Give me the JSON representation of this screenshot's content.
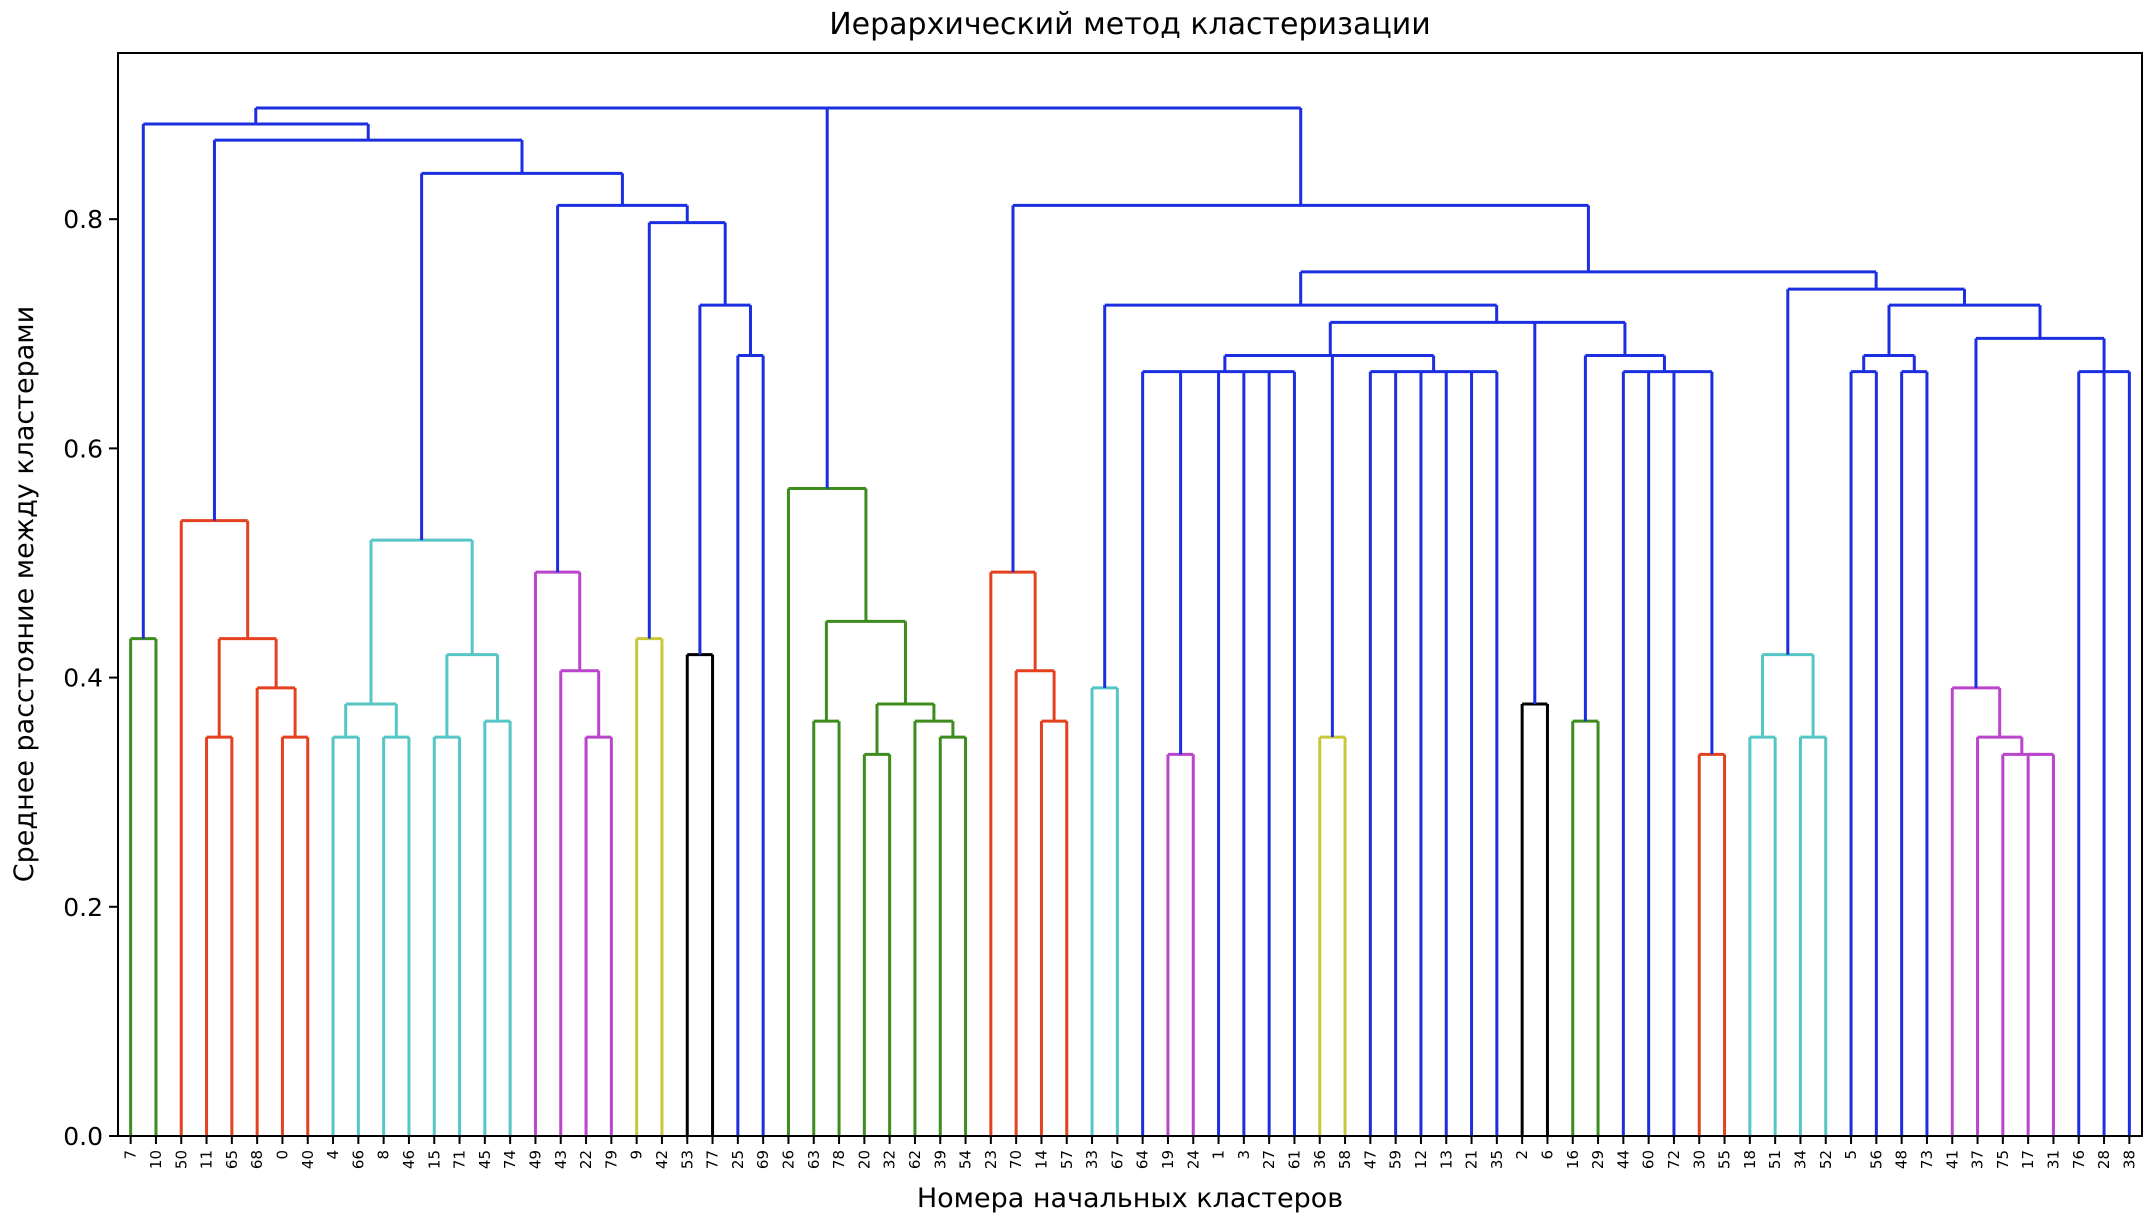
{
  "chart_data": {
    "type": "dendrogram",
    "title": "Иерархический метод кластеризации",
    "xlabel": "Номера начальных кластеров",
    "ylabel": "Среднее расстояние между кластерами",
    "ylim": [
      0,
      0.945
    ],
    "yticks": [
      0.0,
      0.2,
      0.4,
      0.6,
      0.8
    ],
    "ytick_labels": [
      "0.0",
      "0.2",
      "0.4",
      "0.6",
      "0.8"
    ],
    "grid": false,
    "leaves": [
      "7",
      "10",
      "50",
      "11",
      "65",
      "68",
      "0",
      "40",
      "4",
      "66",
      "8",
      "46",
      "15",
      "71",
      "45",
      "74",
      "49",
      "43",
      "22",
      "79",
      "9",
      "42",
      "53",
      "77",
      "25",
      "69",
      "26",
      "63",
      "78",
      "20",
      "32",
      "62",
      "39",
      "54",
      "23",
      "70",
      "14",
      "57",
      "33",
      "67",
      "64",
      "19",
      "24",
      "1",
      "3",
      "27",
      "61",
      "36",
      "58",
      "47",
      "59",
      "12",
      "13",
      "21",
      "35",
      "2",
      "6",
      "16",
      "29",
      "44",
      "60",
      "72",
      "30",
      "55",
      "18",
      "51",
      "34",
      "52",
      "5",
      "56",
      "48",
      "73",
      "41",
      "37",
      "75",
      "17",
      "31",
      "76",
      "28",
      "38"
    ],
    "colors": {
      "green": "#3c8c1e",
      "red": "#e5401f",
      "cyan": "#55c5c5",
      "magenta": "#bb44cc",
      "yellow": "#c8c83a",
      "black": "#000000",
      "blue": "#1c2fe0"
    },
    "tree": {
      "h": 0.897,
      "c": "blue",
      "ch": [
        {
          "h": 0.883,
          "c": "blue",
          "ch": [
            {
              "h": 0.434,
              "c": "green",
              "ch": [
                "7",
                "10"
              ]
            },
            {
              "h": 0.869,
              "c": "blue",
              "ch": [
                {
                  "h": 0.537,
                  "c": "red",
                  "ch": [
                    "50",
                    {
                      "h": 0.434,
                      "c": "red",
                      "ch": [
                        {
                          "h": 0.348,
                          "c": "red",
                          "ch": [
                            "11",
                            "65"
                          ]
                        },
                        {
                          "h": 0.391,
                          "c": "red",
                          "ch": [
                            "68",
                            {
                              "h": 0.348,
                              "c": "red",
                              "ch": [
                                "0",
                                "40"
                              ]
                            }
                          ]
                        }
                      ]
                    }
                  ]
                },
                {
                  "h": 0.84,
                  "c": "blue",
                  "ch": [
                    {
                      "h": 0.52,
                      "c": "cyan",
                      "ch": [
                        {
                          "h": 0.377,
                          "c": "cyan",
                          "ch": [
                            {
                              "h": 0.348,
                              "c": "cyan",
                              "ch": [
                                "4",
                                "66"
                              ]
                            },
                            {
                              "h": 0.348,
                              "c": "cyan",
                              "ch": [
                                "8",
                                "46"
                              ]
                            }
                          ]
                        },
                        {
                          "h": 0.42,
                          "c": "cyan",
                          "ch": [
                            {
                              "h": 0.348,
                              "c": "cyan",
                              "ch": [
                                "15",
                                "71"
                              ]
                            },
                            {
                              "h": 0.362,
                              "c": "cyan",
                              "ch": [
                                "45",
                                "74"
                              ]
                            }
                          ]
                        }
                      ]
                    },
                    {
                      "h": 0.812,
                      "c": "blue",
                      "ch": [
                        {
                          "h": 0.492,
                          "c": "magenta",
                          "ch": [
                            "49",
                            {
                              "h": 0.406,
                              "c": "magenta",
                              "ch": [
                                "43",
                                {
                                  "h": 0.348,
                                  "c": "magenta",
                                  "ch": [
                                    "22",
                                    "79"
                                  ]
                                }
                              ]
                            }
                          ]
                        },
                        {
                          "h": 0.797,
                          "c": "blue",
                          "ch": [
                            {
                              "h": 0.434,
                              "c": "yellow",
                              "ch": [
                                "9",
                                "42"
                              ]
                            },
                            {
                              "h": 0.725,
                              "c": "blue",
                              "ch": [
                                {
                                  "h": 0.42,
                                  "c": "black",
                                  "ch": [
                                    "53",
                                    "77"
                                  ]
                                },
                                {
                                  "h": 0.681,
                                  "c": "blue",
                                  "ch": [
                                    "25",
                                    "69"
                                  ]
                                }
                              ]
                            }
                          ]
                        }
                      ]
                    }
                  ]
                }
              ]
            }
          ]
        },
        {
          "h": 0.897,
          "c": "blue",
          "ch": [
            {
              "h": 0.565,
              "c": "green",
              "ch": [
                "26",
                {
                  "h": 0.449,
                  "c": "green",
                  "ch": [
                    {
                      "h": 0.362,
                      "c": "green",
                      "ch": [
                        "63",
                        "78"
                      ]
                    },
                    {
                      "h": 0.377,
                      "c": "green",
                      "ch": [
                        {
                          "h": 0.333,
                          "c": "green",
                          "ch": [
                            "20",
                            "32"
                          ]
                        },
                        {
                          "h": 0.362,
                          "c": "green",
                          "ch": [
                            "62",
                            {
                              "h": 0.348,
                              "c": "green",
                              "ch": [
                                "39",
                                "54"
                              ]
                            }
                          ]
                        }
                      ]
                    }
                  ]
                }
              ]
            },
            {
              "h": 0.812,
              "c": "blue",
              "ch": [
                {
                  "h": 0.492,
                  "c": "red",
                  "ch": [
                    "23",
                    {
                      "h": 0.406,
                      "c": "red",
                      "ch": [
                        "70",
                        {
                          "h": 0.362,
                          "c": "red",
                          "ch": [
                            "14",
                            "57"
                          ]
                        }
                      ]
                    }
                  ]
                },
                {
                  "h": 0.754,
                  "c": "blue",
                  "ch": [
                    {
                      "h": 0.725,
                      "c": "blue",
                      "ch": [
                        {
                          "h": 0.391,
                          "c": "cyan",
                          "ch": [
                            "33",
                            "67"
                          ]
                        },
                        {
                          "h": 0.71,
                          "c": "blue",
                          "ch": [
                            {
                              "h": 0.681,
                              "c": "blue",
                              "ch": [
                                {
                                  "h": 0.667,
                                  "c": "blue",
                                  "ch": [
                                    "64",
                                    {
                                      "h": 0.333,
                                      "c": "magenta",
                                      "ch": [
                                        "19",
                                        "24"
                                      ]
                                    },
                                    "1",
                                    "3",
                                    "27",
                                    "61"
                                  ]
                                },
                                {
                                  "h": 0.348,
                                  "c": "yellow",
                                  "ch": [
                                    "36",
                                    "58"
                                  ]
                                },
                                {
                                  "h": 0.667,
                                  "c": "blue",
                                  "ch": [
                                    "47",
                                    "59",
                                    "12",
                                    "13",
                                    "21",
                                    "35"
                                  ]
                                }
                              ]
                            },
                            {
                              "h": 0.377,
                              "c": "black",
                              "ch": [
                                "2",
                                "6"
                              ]
                            },
                            {
                              "h": 0.681,
                              "c": "blue",
                              "ch": [
                                {
                                  "h": 0.362,
                                  "c": "green",
                                  "ch": [
                                    "16",
                                    "29"
                                  ]
                                },
                                {
                                  "h": 0.667,
                                  "c": "blue",
                                  "ch": [
                                    "44",
                                    "60",
                                    "72",
                                    {
                                      "h": 0.333,
                                      "c": "red",
                                      "ch": [
                                        "30",
                                        "55"
                                      ]
                                    }
                                  ]
                                }
                              ]
                            }
                          ]
                        }
                      ]
                    },
                    {
                      "h": 0.739,
                      "c": "blue",
                      "ch": [
                        {
                          "h": 0.42,
                          "c": "cyan",
                          "ch": [
                            {
                              "h": 0.348,
                              "c": "cyan",
                              "ch": [
                                "18",
                                "51"
                              ]
                            },
                            {
                              "h": 0.348,
                              "c": "cyan",
                              "ch": [
                                "34",
                                "52"
                              ]
                            }
                          ]
                        },
                        {
                          "h": 0.725,
                          "c": "blue",
                          "ch": [
                            {
                              "h": 0.681,
                              "c": "blue",
                              "ch": [
                                {
                                  "h": 0.667,
                                  "c": "blue",
                                  "ch": [
                                    "5",
                                    "56"
                                  ]
                                },
                                {
                                  "h": 0.667,
                                  "c": "blue",
                                  "ch": [
                                    "48",
                                    "73"
                                  ]
                                }
                              ]
                            },
                            {
                              "h": 0.696,
                              "c": "blue",
                              "ch": [
                                {
                                  "h": 0.391,
                                  "c": "magenta",
                                  "ch": [
                                    "41",
                                    {
                                      "h": 0.348,
                                      "c": "magenta",
                                      "ch": [
                                        "37",
                                        {
                                          "h": 0.333,
                                          "c": "magenta",
                                          "ch": [
                                            "75",
                                            {
                                              "h": 0.333,
                                              "c": "magenta",
                                              "ch": [
                                                "17",
                                                "31"
                                              ]
                                            }
                                          ]
                                        }
                                      ]
                                    }
                                  ]
                                },
                                {
                                  "h": 0.667,
                                  "c": "blue",
                                  "ch": [
                                    "76",
                                    "28",
                                    "38"
                                  ]
                                }
                              ]
                            }
                          ]
                        }
                      ]
                    }
                  ]
                }
              ]
            }
          ]
        }
      ]
    }
  }
}
